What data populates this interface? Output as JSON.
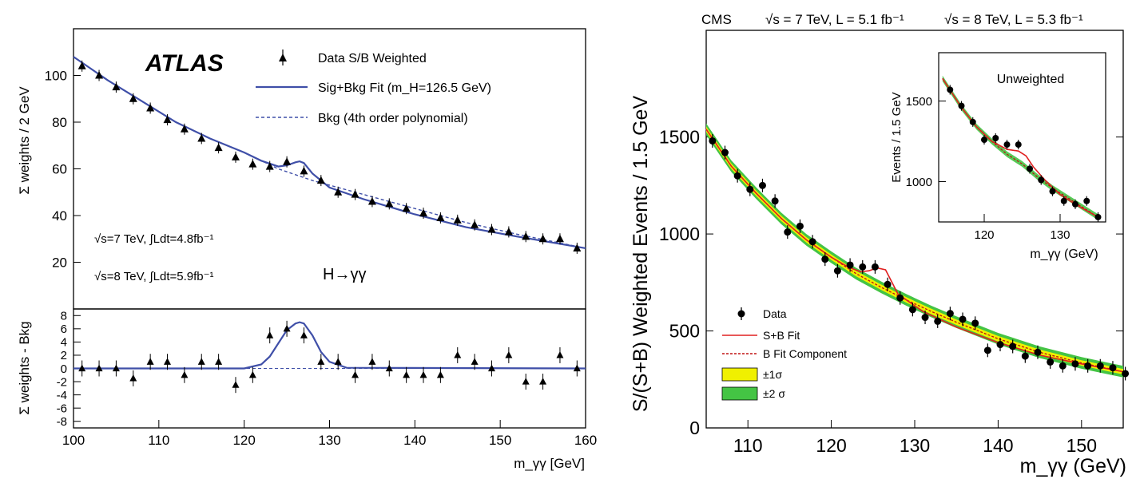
{
  "chart_data": [
    {
      "type": "scatter",
      "panel": "ATLAS main",
      "experiment": "ATLAS",
      "ylabel": "Σ weights / 2 GeV",
      "xlabel": "m_γγ [GeV]",
      "xlim": [
        100,
        160
      ],
      "ylim": [
        0,
        120
      ],
      "yticks": [
        20,
        40,
        60,
        80,
        100
      ],
      "legend": [
        "Data S/B Weighted",
        "Sig+Bkg Fit (m_H=126.5 GeV)",
        "Bkg (4th order polynomial)"
      ],
      "legend_placement": "top-right",
      "annotations": [
        "√s=7 TeV, ∫Ldt=4.8fb⁻¹",
        "√s=8 TeV, ∫Ldt=5.9fb⁻¹",
        "H→γγ"
      ],
      "series": [
        {
          "name": "Data S/B Weighted",
          "x": [
            101,
            103,
            105,
            107,
            109,
            111,
            113,
            115,
            117,
            119,
            121,
            123,
            125,
            127,
            129,
            131,
            133,
            135,
            137,
            139,
            141,
            143,
            145,
            147,
            149,
            151,
            153,
            155,
            157,
            159
          ],
          "y": [
            104,
            100,
            95,
            90,
            86,
            81,
            77,
            73,
            69,
            65,
            62,
            61,
            63,
            59,
            55,
            50,
            49,
            46,
            45,
            43,
            41,
            39,
            38,
            36,
            34,
            33,
            31,
            30,
            30,
            26
          ]
        },
        {
          "name": "Sig+Bkg Fit (m_H=126.5 GeV)",
          "x": [
            100,
            104,
            108,
            112,
            116,
            120,
            122,
            124,
            125,
            126,
            126.5,
            127,
            128,
            130,
            134,
            140,
            146,
            152,
            160
          ],
          "y": [
            108,
            98,
            89,
            80,
            73,
            67,
            63.5,
            61,
            61.5,
            62.8,
            63.2,
            62.5,
            58,
            52,
            47,
            40.5,
            35,
            31,
            26
          ]
        },
        {
          "name": "Bkg (4th order polynomial)",
          "x": [
            100,
            104,
            108,
            112,
            116,
            120,
            124,
            128,
            132,
            136,
            140,
            146,
            152,
            160
          ],
          "y": [
            108,
            98,
            89,
            80,
            73,
            67,
            60,
            55,
            51,
            47,
            43,
            37,
            32,
            26
          ]
        }
      ]
    },
    {
      "type": "scatter",
      "panel": "ATLAS residual",
      "ylabel": "Σ weights - Bkg",
      "xlabel": "m_γγ [GeV]",
      "xlim": [
        100,
        160
      ],
      "ylim": [
        -9,
        9
      ],
      "xticks": [
        100,
        110,
        120,
        130,
        140,
        150,
        160
      ],
      "yticks": [
        -8,
        -6,
        -4,
        -2,
        0,
        2,
        4,
        6,
        8
      ],
      "series": [
        {
          "name": "Data S/B Weighted",
          "x": [
            101,
            103,
            105,
            107,
            109,
            111,
            113,
            115,
            117,
            119,
            121,
            123,
            125,
            127,
            129,
            131,
            133,
            135,
            137,
            139,
            141,
            143,
            145,
            147,
            149,
            151,
            153,
            155,
            157,
            159
          ],
          "y": [
            0,
            0,
            0,
            -1.5,
            1,
            1,
            -1,
            1,
            1,
            -2.5,
            -1,
            5,
            6,
            5,
            1,
            1,
            -1,
            1,
            0,
            -1,
            -1,
            -1,
            2,
            1,
            0,
            2,
            -2,
            -2,
            2,
            0
          ]
        },
        {
          "name": "Sig+Bkg Fit",
          "x": [
            100,
            120,
            122,
            123,
            124,
            125,
            126,
            126.5,
            127,
            128,
            129,
            130,
            132,
            160
          ],
          "y": [
            0,
            0,
            0.6,
            1.8,
            3.8,
            5.8,
            6.8,
            7,
            6.8,
            5,
            2.5,
            1,
            0.1,
            0
          ]
        }
      ]
    },
    {
      "type": "scatter",
      "panel": "CMS main",
      "experiment": "CMS",
      "header": [
        "CMS",
        "√s = 7 TeV, L = 5.1 fb⁻¹",
        "√s = 8 TeV, L = 5.3 fb⁻¹"
      ],
      "ylabel": "S/(S+B) Weighted Events / 1.5 GeV",
      "xlabel": "m_γγ (GeV)",
      "xlim": [
        105,
        155
      ],
      "ylim": [
        0,
        2050
      ],
      "xticks": [
        110,
        120,
        130,
        140,
        150
      ],
      "yticks": [
        0,
        500,
        1000,
        1500
      ],
      "legend": [
        "Data",
        "S+B Fit",
        "B Fit Component",
        "±1σ",
        "±2 σ"
      ],
      "legend_placement": "bottom-left",
      "series": [
        {
          "name": "Data",
          "x": [
            105.75,
            107.25,
            108.75,
            110.25,
            111.75,
            113.25,
            114.75,
            116.25,
            117.75,
            119.25,
            120.75,
            122.25,
            123.75,
            125.25,
            126.75,
            128.25,
            129.75,
            131.25,
            132.75,
            134.25,
            135.75,
            137.25,
            138.75,
            140.25,
            141.75,
            143.25,
            144.75,
            146.25,
            147.75,
            149.25,
            150.75,
            152.25,
            153.75,
            155.25
          ],
          "y": [
            1480,
            1420,
            1300,
            1230,
            1250,
            1170,
            1010,
            1040,
            960,
            870,
            810,
            840,
            830,
            830,
            740,
            670,
            610,
            570,
            550,
            590,
            560,
            540,
            400,
            430,
            420,
            370,
            390,
            340,
            320,
            330,
            320,
            320,
            310,
            280
          ],
          "err": 35
        },
        {
          "name": "S+B Fit",
          "x": [
            105,
            108,
            111,
            114,
            117,
            120,
            122,
            123.5,
            124.5,
            125.5,
            126.5,
            128,
            131,
            135,
            140,
            145,
            150,
            155
          ],
          "y": [
            1540,
            1350,
            1210,
            1080,
            970,
            880,
            830,
            805,
            810,
            825,
            815,
            690,
            600,
            520,
            440,
            375,
            330,
            290
          ]
        },
        {
          "name": "B Fit Component",
          "x": [
            105,
            108,
            111,
            114,
            117,
            120,
            123,
            126,
            129,
            132,
            135,
            140,
            145,
            150,
            155
          ],
          "y": [
            1540,
            1350,
            1210,
            1080,
            970,
            880,
            795,
            725,
            660,
            600,
            545,
            460,
            390,
            335,
            290
          ]
        }
      ]
    },
    {
      "type": "scatter",
      "panel": "CMS inset",
      "title": "Unweighted",
      "ylabel": "Events / 1.5 GeV",
      "xlabel": "m_γγ (GeV)",
      "xlim": [
        114,
        136
      ],
      "ylim": [
        750,
        1800
      ],
      "xticks": [
        120,
        130
      ],
      "yticks": [
        1000,
        1500
      ],
      "series": [
        {
          "name": "Data",
          "x": [
            115.5,
            117,
            118.5,
            120,
            121.5,
            123,
            124.5,
            126,
            127.5,
            129,
            130.5,
            132,
            133.5,
            135
          ],
          "y": [
            1570,
            1470,
            1370,
            1260,
            1270,
            1230,
            1230,
            1080,
            1010,
            940,
            880,
            860,
            880,
            780
          ],
          "err": 30
        },
        {
          "name": "S+B Fit",
          "x": [
            114.5,
            117,
            119,
            121,
            123,
            124.5,
            125.5,
            126.5,
            128,
            130,
            132,
            135
          ],
          "y": [
            1640,
            1460,
            1340,
            1250,
            1200,
            1190,
            1160,
            1090,
            1010,
            920,
            860,
            780
          ]
        },
        {
          "name": "B Fit Component",
          "x": [
            114.5,
            117,
            119,
            121,
            123,
            125,
            127,
            129,
            131,
            133,
            135
          ],
          "y": [
            1640,
            1460,
            1340,
            1250,
            1170,
            1110,
            1030,
            960,
            900,
            840,
            780
          ]
        }
      ]
    }
  ],
  "colors": {
    "atlas_fit": "#3f4fa8",
    "cms_fit": "#e02020",
    "cms_band1": "#f0f000",
    "cms_band2": "#44c444",
    "points": "#000000"
  }
}
